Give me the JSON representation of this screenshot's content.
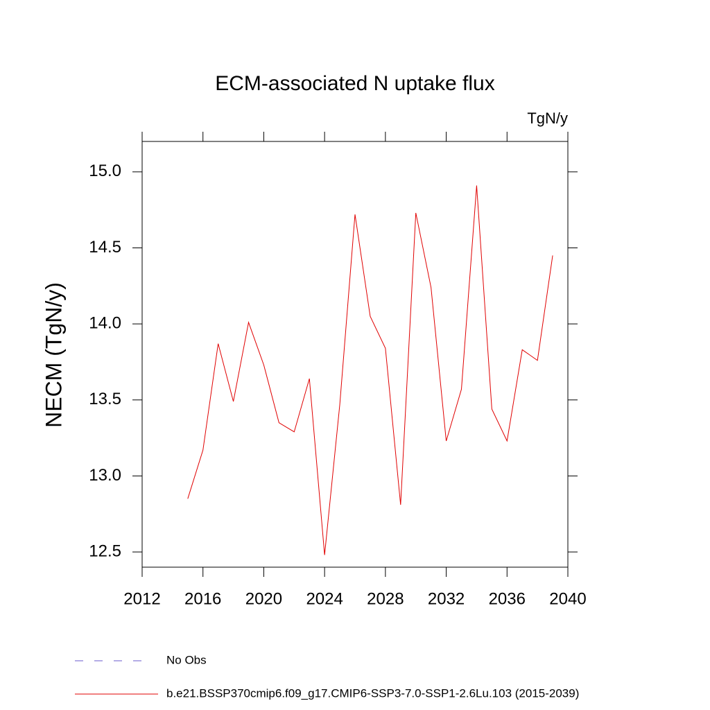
{
  "chart_data": {
    "type": "line",
    "title": "ECM-associated N uptake flux",
    "units": "TgN/y",
    "y_label": "NECM  (TgN/y)",
    "x": [
      2015,
      2016,
      2017,
      2018,
      2019,
      2020,
      2021,
      2022,
      2023,
      2024,
      2025,
      2026,
      2027,
      2028,
      2029,
      2030,
      2031,
      2032,
      2033,
      2034,
      2035,
      2036,
      2037,
      2038,
      2039
    ],
    "series": [
      {
        "name": "No Obs",
        "color": "#6a5acd",
        "dashed": true,
        "values": [
          null,
          null,
          null,
          null,
          null,
          null,
          null,
          null,
          null,
          null,
          null,
          null,
          null,
          null,
          null,
          null,
          null,
          null,
          null,
          null,
          null,
          null,
          null,
          null,
          null
        ]
      },
      {
        "name": "b.e21.BSSP370cmip6.f09_g17.CMIP6-SSP3-7.0-SSP1-2.6Lu.103 (2015-2039)",
        "color": "#e00000",
        "dashed": false,
        "values": [
          12.85,
          13.17,
          13.87,
          13.49,
          14.01,
          13.73,
          13.35,
          13.29,
          13.64,
          12.48,
          13.47,
          14.72,
          14.05,
          13.84,
          12.81,
          14.73,
          14.24,
          13.23,
          13.57,
          14.91,
          13.44,
          13.23,
          13.83,
          13.76,
          14.45
        ]
      }
    ],
    "xlim": [
      2012,
      2040
    ],
    "xticks": [
      2012,
      2016,
      2020,
      2024,
      2028,
      2032,
      2036,
      2040
    ],
    "ylim": [
      12.4,
      15.2
    ],
    "yticks": [
      {
        "value": 12.5,
        "label": "12.5"
      },
      {
        "value": 13,
        "label": "13.0"
      },
      13.5,
      {
        "value": 14,
        "label": "14.0"
      },
      14.5,
      {
        "value": 15,
        "label": "15.0"
      }
    ],
    "grid": false
  }
}
